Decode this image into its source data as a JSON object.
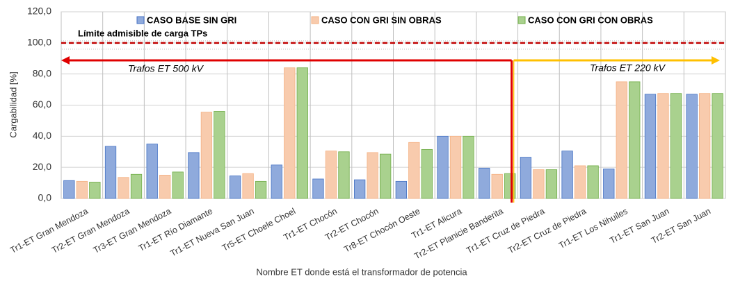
{
  "chart_data": {
    "type": "bar",
    "ylabel": "Cargabilidad [%]",
    "xlabel": "Nombre ET donde está el transformador de potencia",
    "categories": [
      "Tr1-ET Gran Mendoza",
      "Tr2-ET Gran Mendoza",
      "Tr3-ET Gran Mendoza",
      "Tr1-ET Río Diamante",
      "Tr1-ET Nueva San Juan",
      "Tr5-ET Choele Choel",
      "Tr1-ET Chocón",
      "Tr2-ET Chocón",
      "Tr8-ET Chocón Oeste",
      "Tr1-ET Alicura",
      "Tr2-ET Planicie Banderita",
      "Tr1-ET Cruz de Piedra",
      "Tr2-ET Cruz de Piedra",
      "Tr1-ET Los Nihuiles",
      "Tr1-ET San Juan",
      "Tr2-ET San Juan"
    ],
    "series": [
      {
        "name": "CASO BASE SIN GRI",
        "color": "#8faadc",
        "values": [
          11.5,
          33.5,
          35,
          29.5,
          14.5,
          21.5,
          12.5,
          12,
          11,
          40,
          19.5,
          26.5,
          30.5,
          19,
          67,
          67
        ]
      },
      {
        "name": "CASO CON GRI SIN OBRAS",
        "color": "#f8cbad",
        "values": [
          11,
          13.5,
          15,
          55.5,
          16,
          84,
          30.5,
          29.5,
          36,
          40,
          15.5,
          18.5,
          21,
          75,
          67.5,
          67.5
        ]
      },
      {
        "name": "CASO CON GRI CON OBRAS",
        "color": "#a9d18e",
        "values": [
          10.5,
          15.5,
          17,
          56,
          11,
          84,
          30,
          28.5,
          31.5,
          40,
          16,
          18.5,
          21,
          75,
          67.5,
          67.5
        ]
      }
    ],
    "ylim": [
      0,
      120
    ],
    "yticks": [
      {
        "value": 0,
        "label": "0,0"
      },
      {
        "value": 20,
        "label": "20,0"
      },
      {
        "value": 40,
        "label": "40,0"
      },
      {
        "value": 60,
        "label": "60,0"
      },
      {
        "value": 80,
        "label": "80,0"
      },
      {
        "value": 100,
        "label": "100,0"
      },
      {
        "value": 120,
        "label": "120,0"
      }
    ],
    "grid": true,
    "limit": {
      "value": 100,
      "label": "Límite admisible de carga TPs"
    },
    "annotations": [
      "Trafos ET 500 kV",
      "Trafos ET 220 kV"
    ]
  }
}
